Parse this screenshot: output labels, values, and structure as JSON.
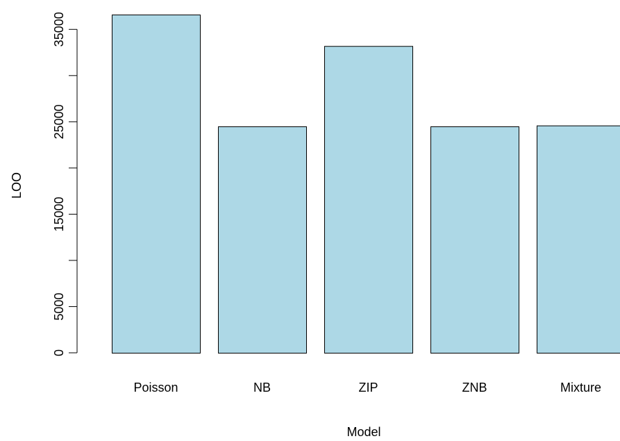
{
  "chart_data": {
    "type": "bar",
    "categories": [
      "Poisson",
      "NB",
      "ZIP",
      "ZNB",
      "Mixture"
    ],
    "values": [
      36600,
      24500,
      33200,
      24500,
      24600
    ],
    "xlabel": "Model",
    "ylabel": "LOO",
    "ylim": [
      0,
      36600
    ],
    "yticks": [
      0,
      5000,
      10000,
      15000,
      20000,
      25000,
      30000,
      35000
    ],
    "ytick_labels": [
      "0",
      "5000",
      "",
      "15000",
      "",
      "25000",
      "",
      "35000"
    ],
    "grid": false,
    "legend": "none",
    "bar_color": "#ADD8E6",
    "bar_border_color": "#000000"
  }
}
